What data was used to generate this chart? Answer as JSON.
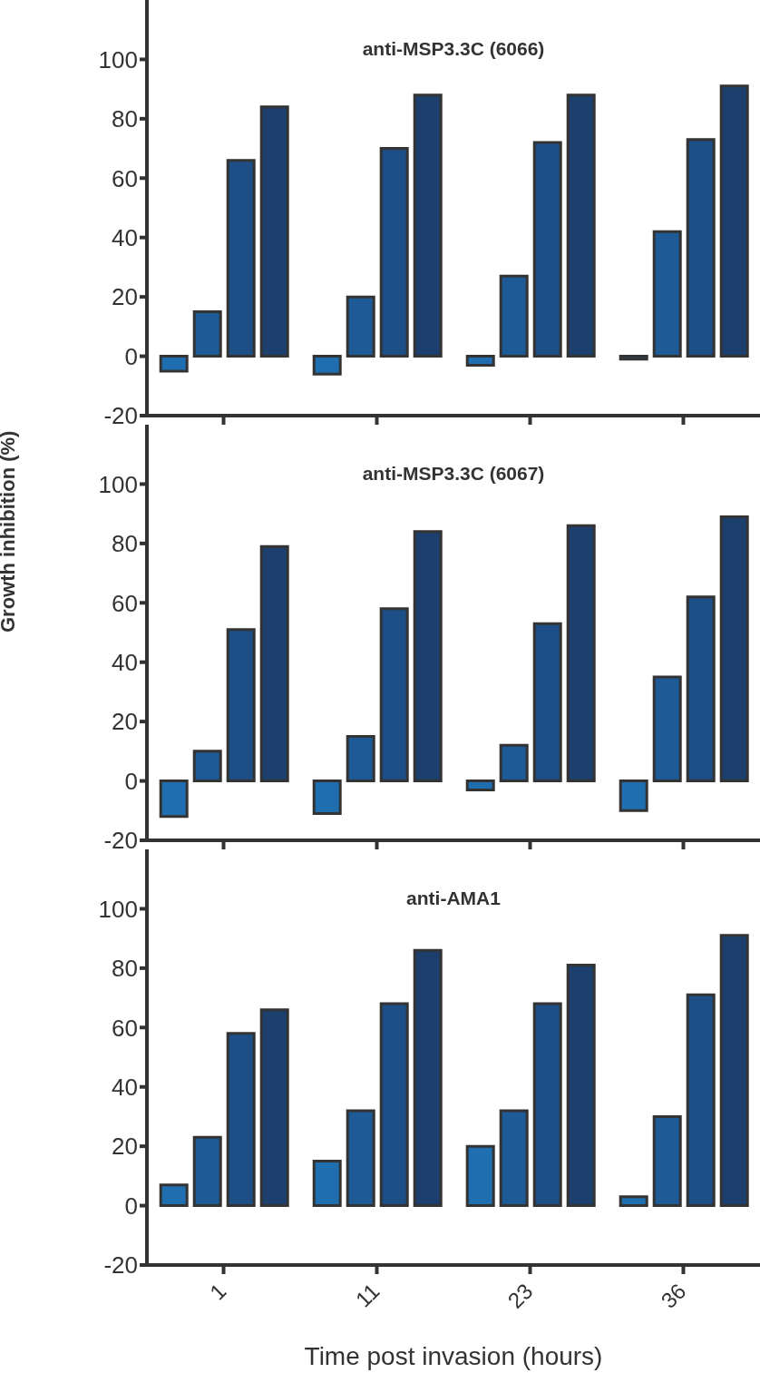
{
  "chart_data": [
    {
      "type": "bar",
      "title": "anti-MSP3.3C (6066)",
      "categories": [
        "1",
        "11",
        "23",
        "36"
      ],
      "ylim": [
        -20,
        120
      ],
      "yticks": [
        -20,
        0,
        20,
        40,
        60,
        80,
        100
      ],
      "tick_labels": "y",
      "series": [
        {
          "color": "#1f6fb0",
          "values": [
            -5,
            -6,
            -3,
            -1
          ]
        },
        {
          "color": "#1d5a96",
          "values": [
            15,
            20,
            27,
            42
          ]
        },
        {
          "color": "#1d4f86",
          "values": [
            66,
            70,
            72,
            73
          ]
        },
        {
          "color": "#1c3f6e",
          "values": [
            84,
            88,
            88,
            91
          ]
        }
      ]
    },
    {
      "type": "bar",
      "title": "anti-MSP3.3C (6067)",
      "ylabel": "Growth inhibition (%)",
      "categories": [
        "1",
        "11",
        "23",
        "36"
      ],
      "ylim": [
        -20,
        120
      ],
      "yticks": [
        -20,
        0,
        20,
        40,
        60,
        80,
        100
      ],
      "tick_labels": "y",
      "series": [
        {
          "color": "#1f6fb0",
          "values": [
            -12,
            -11,
            -3,
            -10
          ]
        },
        {
          "color": "#1d5a96",
          "values": [
            10,
            15,
            12,
            35
          ]
        },
        {
          "color": "#1d4f86",
          "values": [
            51,
            58,
            53,
            62
          ]
        },
        {
          "color": "#1c3f6e",
          "values": [
            79,
            84,
            86,
            89
          ]
        }
      ]
    },
    {
      "type": "bar",
      "title": "anti-AMA1",
      "xlabel": "Time post invasion (hours)",
      "categories": [
        "1",
        "11",
        "23",
        "36"
      ],
      "ylim": [
        -20,
        120
      ],
      "yticks": [
        -20,
        0,
        20,
        40,
        60,
        80,
        100
      ],
      "series": [
        {
          "color": "#1f6fb0",
          "values": [
            7,
            15,
            20,
            3
          ]
        },
        {
          "color": "#1d5a96",
          "values": [
            23,
            32,
            32,
            30
          ]
        },
        {
          "color": "#1d4f86",
          "values": [
            58,
            68,
            68,
            71
          ]
        },
        {
          "color": "#1c3f6e",
          "values": [
            66,
            86,
            81,
            91
          ]
        }
      ]
    }
  ]
}
